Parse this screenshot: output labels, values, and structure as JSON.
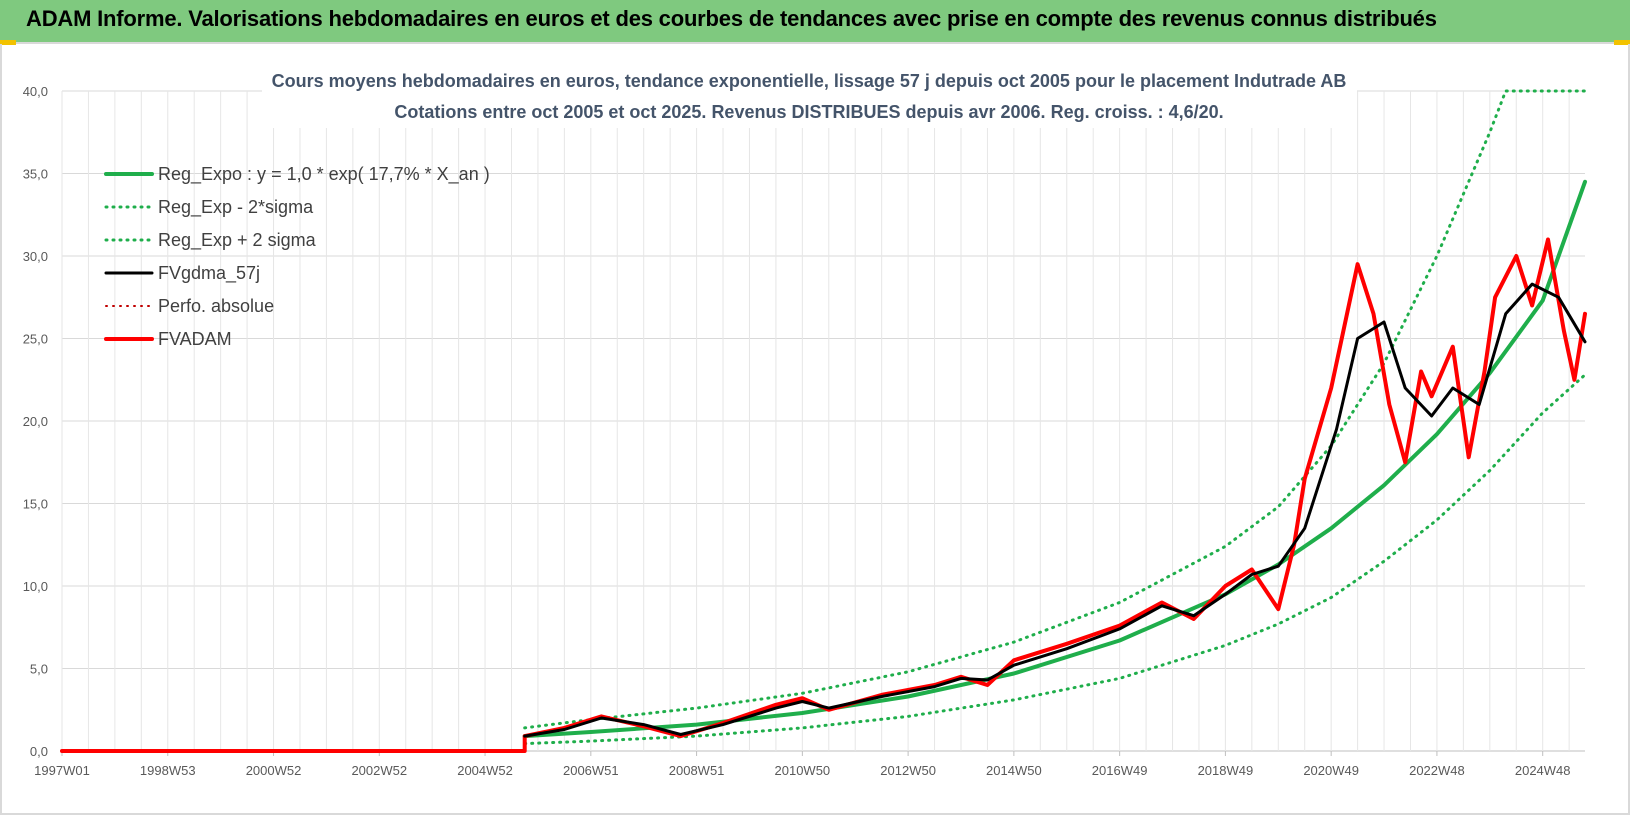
{
  "header": {
    "title": "ADAM Informe. Valorisations hebdomadaires en euros et des courbes de tendances avec prise en compte des revenus connus distribués"
  },
  "chart_data": {
    "type": "line",
    "title_line1": "Cours moyens hebdomadaires en euros, tendance exponentielle, lissage 57 j depuis oct 2005 pour le placement Indutrade AB",
    "title_line2": "Cotations entre oct 2005 et oct 2025. Revenus DISTRIBUES depuis avr 2006. Reg. croiss. : 4,6/20.",
    "ylim": [
      0,
      40
    ],
    "xlim": [
      1997.0,
      2025.8
    ],
    "y_ticks": [
      "0,0",
      "5,0",
      "10,0",
      "15,0",
      "20,0",
      "25,0",
      "30,0",
      "35,0",
      "40,0"
    ],
    "x_tick_labels": [
      "1997W01",
      "1998W53",
      "2000W52",
      "2002W52",
      "2004W52",
      "2006W51",
      "2008W51",
      "2010W50",
      "2012W50",
      "2014W50",
      "2016W49",
      "2018W49",
      "2020W49",
      "2022W48",
      "2024W48"
    ],
    "x_tick_years": [
      1997.0,
      1999.0,
      2001.0,
      2003.0,
      2005.0,
      2007.0,
      2009.0,
      2011.0,
      2013.0,
      2015.0,
      2017.0,
      2019.0,
      2021.0,
      2023.0,
      2025.0
    ],
    "legend": [
      {
        "name": "Reg_Expo : y = 1,0 * exp( 17,7% *  X_an )",
        "color": "#1fae4b",
        "style": "solid",
        "width": 4
      },
      {
        "name": "Reg_Exp - 2*sigma",
        "color": "#1fae4b",
        "style": "dotted",
        "width": 3
      },
      {
        "name": "Reg_Exp + 2 sigma",
        "color": "#1fae4b",
        "style": "dotted",
        "width": 3
      },
      {
        "name": "FVgdma_57j",
        "color": "#000000",
        "style": "solid",
        "width": 3
      },
      {
        "name": "Perfo. absolue",
        "color": "#c00000",
        "style": "dotted",
        "width": 2
      },
      {
        "name": "FVADAM",
        "color": "#ff0000",
        "style": "solid",
        "width": 4
      }
    ],
    "series": [
      {
        "name": "Reg_Expo",
        "x": [
          2005.75,
          2007,
          2009,
          2011,
          2013,
          2015,
          2017,
          2019,
          2020,
          2021,
          2022,
          2023,
          2024,
          2025,
          2025.8
        ],
        "values": [
          0.9,
          1.15,
          1.6,
          2.3,
          3.3,
          4.7,
          6.7,
          9.5,
          11.3,
          13.5,
          16.1,
          19.2,
          22.9,
          27.3,
          34.5
        ]
      },
      {
        "name": "Reg_Exp - 2*sigma",
        "x": [
          2005.75,
          2007,
          2009,
          2011,
          2013,
          2015,
          2017,
          2019,
          2020,
          2021,
          2022,
          2023,
          2024,
          2025,
          2025.8
        ],
        "values": [
          0.45,
          0.6,
          0.9,
          1.4,
          2.1,
          3.1,
          4.4,
          6.4,
          7.7,
          9.3,
          11.5,
          14.0,
          17.0,
          20.5,
          22.8
        ]
      },
      {
        "name": "Reg_Exp + 2 sigma",
        "x": [
          2005.75,
          2007,
          2009,
          2011,
          2013,
          2015,
          2017,
          2019,
          2020,
          2021,
          2022,
          2023,
          2024,
          2024.3,
          2025.8
        ],
        "values": [
          1.4,
          1.9,
          2.6,
          3.5,
          4.8,
          6.6,
          9.0,
          12.4,
          14.8,
          18.5,
          23.5,
          30.0,
          37.5,
          40.0,
          40.0
        ]
      },
      {
        "name": "FVgdma_57j",
        "x": [
          2005.75,
          2006.5,
          2007.2,
          2008,
          2008.7,
          2009.5,
          2010.5,
          2011,
          2011.5,
          2012.5,
          2013.5,
          2014,
          2014.5,
          2015,
          2016,
          2017,
          2017.8,
          2018.4,
          2019,
          2019.5,
          2020,
          2020.5,
          2021.1,
          2021.5,
          2022,
          2022.4,
          2022.9,
          2023.3,
          2023.8,
          2024.3,
          2024.8,
          2025.3,
          2025.8
        ],
        "values": [
          0.9,
          1.3,
          2.0,
          1.6,
          1.0,
          1.6,
          2.6,
          3.0,
          2.6,
          3.3,
          3.9,
          4.4,
          4.3,
          5.2,
          6.2,
          7.4,
          8.8,
          8.2,
          9.5,
          10.7,
          11.2,
          13.5,
          19.5,
          25.0,
          26.0,
          22.0,
          20.3,
          22.0,
          21.0,
          26.5,
          28.3,
          27.5,
          24.8
        ]
      },
      {
        "name": "FVADAM",
        "x": [
          1997.0,
          2005.75,
          2005.75,
          2006.5,
          2007.2,
          2008,
          2008.7,
          2009.5,
          2010.5,
          2011,
          2011.5,
          2012.5,
          2013.5,
          2014,
          2014.5,
          2015,
          2016,
          2017,
          2017.8,
          2018.4,
          2019,
          2019.5,
          2020,
          2020.3,
          2020.5,
          2021,
          2021.5,
          2021.8,
          2022.1,
          2022.4,
          2022.7,
          2022.9,
          2023.3,
          2023.6,
          2023.9,
          2024.1,
          2024.5,
          2024.8,
          2025.1,
          2025.4,
          2025.6,
          2025.8
        ],
        "values": [
          0.0,
          0.0,
          0.9,
          1.4,
          2.1,
          1.5,
          0.9,
          1.7,
          2.8,
          3.2,
          2.5,
          3.4,
          4.0,
          4.5,
          4.0,
          5.5,
          6.5,
          7.6,
          9.0,
          8.0,
          10.0,
          11.0,
          8.6,
          12.5,
          16.5,
          22.0,
          29.5,
          26.5,
          21.0,
          17.5,
          23.0,
          21.5,
          24.5,
          17.8,
          23.0,
          27.5,
          30.0,
          27.0,
          31.0,
          25.5,
          22.5,
          26.5
        ]
      }
    ]
  }
}
